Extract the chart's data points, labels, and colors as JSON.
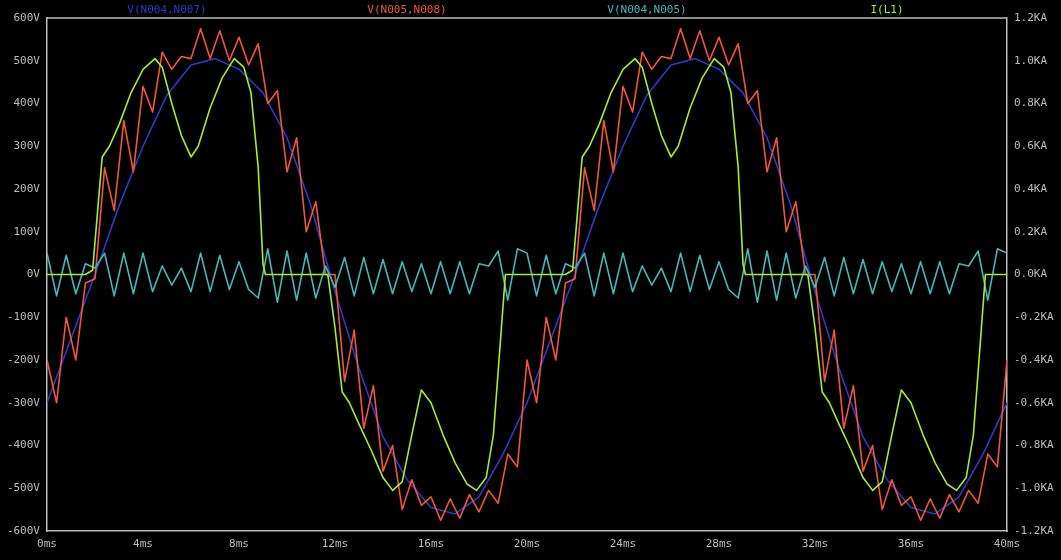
{
  "chart_data": {
    "type": "line",
    "legend": "top",
    "marker": "none",
    "line_style": "solid",
    "x": [
      0,
      0.4,
      0.8,
      1.2,
      1.6,
      2,
      2.4,
      2.8,
      3.2,
      3.6,
      4,
      4.4,
      4.8,
      5.2,
      5.6,
      6,
      6.4,
      6.8,
      7.2,
      7.6,
      8,
      8.4,
      8.8,
      9.2,
      9.6,
      10,
      10.4,
      10.8,
      11.2,
      11.6,
      12,
      12.4,
      12.8,
      13.2,
      13.6,
      14,
      14.4,
      14.8,
      15.2,
      15.6,
      16,
      16.4,
      16.8,
      17.2,
      17.6,
      18,
      18.4,
      18.8,
      19.2,
      19.6,
      20,
      20.4,
      20.8,
      21.2,
      21.6,
      22,
      22.4,
      22.8,
      23.2,
      23.6,
      24,
      24.4,
      24.8,
      25.2,
      25.6,
      26,
      26.4,
      26.8,
      27.2,
      27.6,
      28,
      28.4,
      28.8,
      29.2,
      29.6,
      30,
      30.4,
      30.8,
      31.2,
      31.6,
      32,
      32.4,
      32.8,
      33.2,
      33.6,
      34,
      34.4,
      34.8,
      35.2,
      35.6,
      36,
      36.4,
      36.8,
      37.2,
      37.6,
      38,
      38.4,
      38.8,
      39.2,
      39.6,
      40
    ],
    "xlim": [
      0,
      40
    ],
    "xticks": [
      {
        "value": 0,
        "label": "0ms"
      },
      {
        "value": 4,
        "label": "4ms"
      },
      {
        "value": 8,
        "label": "8ms"
      },
      {
        "value": 12,
        "label": "12ms"
      },
      {
        "value": 16,
        "label": "16ms"
      },
      {
        "value": 20,
        "label": "20ms"
      },
      {
        "value": 24,
        "label": "24ms"
      },
      {
        "value": 28,
        "label": "28ms"
      },
      {
        "value": 32,
        "label": "32ms"
      },
      {
        "value": 36,
        "label": "36ms"
      },
      {
        "value": 40,
        "label": "40ms"
      }
    ],
    "ylim": [
      -600,
      600
    ],
    "yticks": [
      {
        "value": -600,
        "label": "-600V"
      },
      {
        "value": -500,
        "label": "-500V"
      },
      {
        "value": -400,
        "label": "-400V"
      },
      {
        "value": -300,
        "label": "-300V"
      },
      {
        "value": -200,
        "label": "-200V"
      },
      {
        "value": -100,
        "label": "-100V"
      },
      {
        "value": 0,
        "label": "0V"
      },
      {
        "value": 100,
        "label": "100V"
      },
      {
        "value": 200,
        "label": "200V"
      },
      {
        "value": 300,
        "label": "300V"
      },
      {
        "value": 400,
        "label": "400V"
      },
      {
        "value": 500,
        "label": "500V"
      },
      {
        "value": 600,
        "label": "600V"
      }
    ],
    "y2lim": [
      -1.2,
      1.2
    ],
    "y2ticks": [
      {
        "value": -1.2,
        "label": "-1.2KA"
      },
      {
        "value": -1.0,
        "label": "-1.0KA"
      },
      {
        "value": -0.8,
        "label": "-0.8KA"
      },
      {
        "value": -0.6,
        "label": "-0.6KA"
      },
      {
        "value": -0.4,
        "label": "-0.4KA"
      },
      {
        "value": -0.2,
        "label": "-0.2KA"
      },
      {
        "value": 0,
        "label": "0.0KA"
      },
      {
        "value": 0.2,
        "label": "0.2KA"
      },
      {
        "value": 0.4,
        "label": "0.4KA"
      },
      {
        "value": 0.6,
        "label": "0.6KA"
      },
      {
        "value": 0.8,
        "label": "0.8KA"
      },
      {
        "value": 1.0,
        "label": "1.0KA"
      },
      {
        "value": 1.2,
        "label": "1.2KA"
      }
    ],
    "series": [
      {
        "name": "V(N004,N007)",
        "color": "#2b3bc8",
        "x": [
          0,
          1,
          2,
          3,
          4,
          5,
          6,
          7,
          8,
          9,
          10,
          11,
          12,
          13,
          14,
          15,
          16,
          17,
          18,
          19,
          20,
          21,
          22,
          23,
          24,
          25,
          26,
          27,
          28,
          29,
          30,
          31,
          32,
          33,
          34,
          35,
          36,
          37,
          38,
          39,
          40
        ],
        "values": [
          -300,
          -150,
          0,
          160,
          300,
          420,
          490,
          505,
          480,
          425,
          320,
          160,
          -40,
          -220,
          -380,
          -480,
          -545,
          -560,
          -520,
          -420,
          -300,
          -150,
          0,
          160,
          300,
          420,
          490,
          505,
          480,
          425,
          320,
          160,
          -40,
          -220,
          -380,
          -480,
          -545,
          -560,
          -520,
          -420,
          -300
        ]
      },
      {
        "name": "V(N005,N008)",
        "color": "#f2553c",
        "values": [
          -200,
          -300,
          -100,
          -200,
          -20,
          -10,
          250,
          150,
          360,
          240,
          440,
          380,
          520,
          480,
          510,
          505,
          575,
          505,
          570,
          500,
          555,
          490,
          540,
          400,
          430,
          240,
          320,
          100,
          170,
          0,
          0,
          -250,
          -130,
          -360,
          -260,
          -460,
          -400,
          -550,
          -480,
          -540,
          -520,
          -575,
          -525,
          -570,
          -515,
          -555,
          -505,
          -535,
          -420,
          -450,
          -200,
          -300,
          -100,
          -200,
          -20,
          -10,
          250,
          150,
          360,
          240,
          440,
          380,
          520,
          480,
          510,
          505,
          575,
          505,
          570,
          500,
          555,
          490,
          540,
          400,
          430,
          240,
          320,
          100,
          170,
          0,
          0,
          -250,
          -130,
          -360,
          -260,
          -460,
          -400,
          -550,
          -480,
          -540,
          -520,
          -575,
          -525,
          -570,
          -515,
          -555,
          -505,
          -535,
          -420,
          -450,
          -200
        ]
      },
      {
        "name": "V(N004,N005)",
        "color": "#45b9b9",
        "values": [
          50,
          -50,
          45,
          -45,
          25,
          15,
          50,
          -50,
          50,
          -45,
          50,
          -40,
          20,
          -25,
          15,
          -40,
          50,
          -40,
          45,
          -35,
          30,
          -35,
          -55,
          60,
          -65,
          55,
          -60,
          50,
          -55,
          20,
          -30,
          40,
          -50,
          40,
          -45,
          35,
          -45,
          30,
          -40,
          25,
          -45,
          30,
          -45,
          30,
          -45,
          25,
          20,
          55,
          -60,
          60,
          50,
          -50,
          45,
          -45,
          25,
          15,
          50,
          -50,
          50,
          -45,
          50,
          -40,
          20,
          -25,
          15,
          -40,
          50,
          -40,
          45,
          -35,
          30,
          -35,
          -55,
          60,
          -65,
          55,
          -60,
          50,
          -55,
          20,
          -30,
          40,
          -50,
          40,
          -45,
          35,
          -45,
          30,
          -40,
          25,
          -45,
          30,
          -45,
          30,
          -45,
          25,
          20,
          55,
          -60,
          60,
          50
        ]
      },
      {
        "name": "I(L1)",
        "color": "#a6ee2a",
        "axis": "y2",
        "x": [
          0,
          1.6,
          1.9,
          2.3,
          2.6,
          3,
          3.5,
          4,
          4.5,
          4.8,
          5.2,
          5.6,
          6,
          6.3,
          6.8,
          7.3,
          7.8,
          8.2,
          8.5,
          8.8,
          9,
          9.1,
          11.7,
          12,
          12.3,
          12.6,
          13,
          13.5,
          14,
          14.4,
          14.8,
          15.2,
          15.6,
          16,
          16.5,
          17,
          17.5,
          17.9,
          18.3,
          18.6,
          18.9,
          19.1,
          20,
          21.6,
          21.9,
          22.3,
          22.6,
          23,
          23.5,
          24,
          24.5,
          24.8,
          25.2,
          25.6,
          26,
          26.3,
          26.8,
          27.3,
          27.8,
          28.2,
          28.5,
          28.8,
          29,
          29.1,
          31.7,
          32,
          32.3,
          32.6,
          33,
          33.5,
          34,
          34.4,
          34.8,
          35.2,
          35.6,
          36,
          36.5,
          37,
          37.5,
          37.9,
          38.3,
          38.6,
          38.9,
          39.1,
          40
        ],
        "values": [
          0,
          0,
          0.02,
          0.55,
          0.6,
          0.7,
          0.85,
          0.96,
          1.01,
          0.97,
          0.8,
          0.65,
          0.55,
          0.6,
          0.78,
          0.92,
          1.01,
          0.97,
          0.85,
          0.5,
          0.05,
          0,
          0,
          -0.25,
          -0.55,
          -0.6,
          -0.7,
          -0.82,
          -0.95,
          -1.01,
          -0.97,
          -0.75,
          -0.54,
          -0.6,
          -0.75,
          -0.88,
          -0.98,
          -1.01,
          -0.95,
          -0.75,
          -0.3,
          0,
          0,
          0,
          0.02,
          0.55,
          0.6,
          0.7,
          0.85,
          0.96,
          1.01,
          0.97,
          0.8,
          0.65,
          0.55,
          0.6,
          0.78,
          0.92,
          1.01,
          0.97,
          0.85,
          0.5,
          0.05,
          0,
          0,
          -0.25,
          -0.55,
          -0.6,
          -0.7,
          -0.82,
          -0.95,
          -1.01,
          -0.97,
          -0.75,
          -0.54,
          -0.6,
          -0.75,
          -0.88,
          -0.98,
          -1.01,
          -0.95,
          -0.75,
          -0.3,
          0,
          0
        ]
      }
    ]
  }
}
